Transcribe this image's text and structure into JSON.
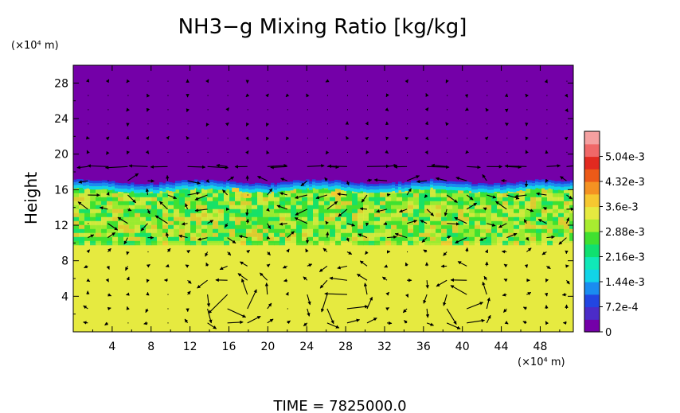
{
  "chart_data": {
    "type": "heatmap",
    "title": "NH3−g Mixing Ratio [kg/kg]",
    "ylabel": "Height",
    "y_unit": "(×10⁴ m)",
    "x_unit": "(×10⁴ m)",
    "xlabel": "",
    "xlim": [
      0,
      51.4
    ],
    "ylim": [
      0,
      30
    ],
    "x_ticks": [
      "4",
      "8",
      "12",
      "16",
      "20",
      "24",
      "28",
      "32",
      "36",
      "40",
      "44",
      "48"
    ],
    "y_ticks": [
      "4",
      "8",
      "12",
      "16",
      "20",
      "24",
      "28"
    ],
    "colorbar": {
      "labels": [
        "0",
        "7.2e-4",
        "1.44e-3",
        "2.16e-3",
        "2.88e-3",
        "3.6e-3",
        "4.32e-3",
        "5.04e-3"
      ],
      "range": [
        0,
        0.00576
      ],
      "colors": [
        "#7400a8",
        "#4b2cc8",
        "#2246e2",
        "#1a8cf0",
        "#11d4e8",
        "#10e8b8",
        "#10e070",
        "#40e030",
        "#a8ec30",
        "#e6ea40",
        "#f6c830",
        "#f49222",
        "#ec5a18",
        "#e22a20",
        "#f06868",
        "#f4a0a0"
      ]
    },
    "field_layers": [
      {
        "region": "upper layer",
        "y_range": [
          16.5,
          30
        ],
        "value": 0
      },
      {
        "region": "middle layer",
        "y_range": [
          10,
          16.5
        ],
        "value": 0.0027
      },
      {
        "region": "lower layer",
        "y_range": [
          0,
          10
        ],
        "value": 0.0033
      }
    ],
    "vectors": "wind vector field (arrows) overlaid on the colored field",
    "time_label": "TIME = 7825000.0"
  }
}
